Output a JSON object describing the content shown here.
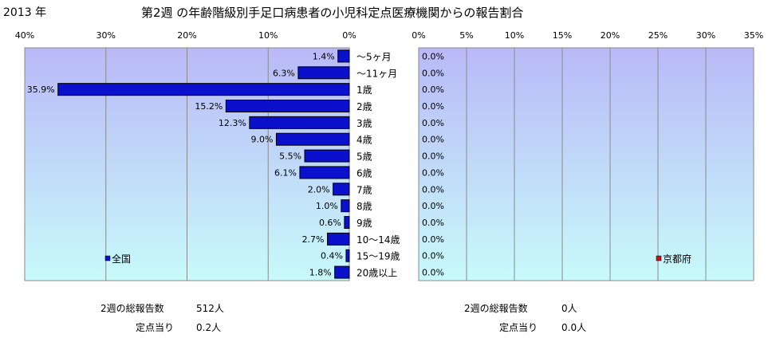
{
  "header": {
    "year": "2013 年",
    "title": "第2週 の年齢階級別手足口病患者の小児科定点医療機関からの報告割合"
  },
  "colors": {
    "bar_national": "#0a10cc",
    "bar_kyoto": "#c0151b",
    "plot_top": "#b9b9f7",
    "plot_bottom": "#c8fafa",
    "grid": "#8a8a8a"
  },
  "chart_data": [
    {
      "type": "bar",
      "orientation": "horizontal",
      "direction": "right-to-left",
      "categories": [
        "～5ヶ月",
        "～11ヶ月",
        "1歳",
        "2歳",
        "3歳",
        "4歳",
        "5歳",
        "6歳",
        "7歳",
        "8歳",
        "9歳",
        "10～14歳",
        "15～19歳",
        "20歳以上"
      ],
      "series": [
        {
          "name": "全国",
          "values": [
            1.4,
            6.3,
            35.9,
            15.2,
            12.3,
            9.0,
            5.5,
            6.1,
            2.0,
            1.0,
            0.6,
            2.7,
            0.4,
            1.8
          ],
          "labels": [
            "1.4%",
            "6.3%",
            "35.9%",
            "15.2%",
            "12.3%",
            "9.0%",
            "5.5%",
            "6.1%",
            "2.0%",
            "1.0%",
            "0.6%",
            "2.7%",
            "0.4%",
            "1.8%"
          ]
        }
      ],
      "xlim": [
        0,
        40
      ],
      "xticks": [
        40,
        30,
        20,
        10,
        0
      ],
      "xtick_labels": [
        "40%",
        "30%",
        "20%",
        "10%",
        "0%"
      ],
      "legend": "bottom-left",
      "grid": true
    },
    {
      "type": "bar",
      "orientation": "horizontal",
      "direction": "left-to-right",
      "series": [
        {
          "name": "京都府",
          "values": [
            0,
            0,
            0,
            0,
            0,
            0,
            0,
            0,
            0,
            0,
            0,
            0,
            0,
            0
          ],
          "labels": [
            "0.0%",
            "0.0%",
            "0.0%",
            "0.0%",
            "0.0%",
            "0.0%",
            "0.0%",
            "0.0%",
            "0.0%",
            "0.0%",
            "0.0%",
            "0.0%",
            "0.0%",
            "0.0%"
          ]
        }
      ],
      "xlim": [
        0,
        35
      ],
      "xticks": [
        0,
        5,
        10,
        15,
        20,
        25,
        30,
        35
      ],
      "xtick_labels": [
        "0%",
        "5%",
        "10%",
        "15%",
        "20%",
        "25%",
        "30%",
        "35%"
      ],
      "legend": "bottom-right",
      "grid": true
    }
  ],
  "summary": {
    "national": {
      "total_label": "2週の総報告数",
      "total_value": "512人",
      "per_label": "定点当り",
      "per_value": "0.2人"
    },
    "kyoto": {
      "total_label": "2週の総報告数",
      "total_value": "0人",
      "per_label": "定点当り",
      "per_value": "0.0人"
    }
  }
}
